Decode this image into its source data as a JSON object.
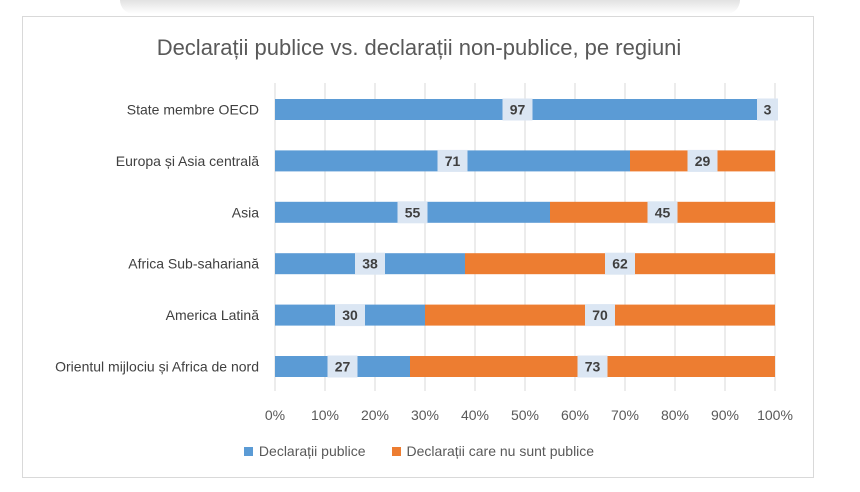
{
  "chart_data": {
    "type": "bar",
    "orientation": "horizontal",
    "stacked": true,
    "title": "Declarații publice vs. declarații non-publice, pe regiuni",
    "categories": [
      "State membre OECD",
      "Europa și Asia centrală",
      "Asia",
      "Africa Sub-sahariană",
      "America Latină",
      "Orientul mijlociu și Africa de nord"
    ],
    "series": [
      {
        "name": "Declarații publice",
        "color": "#5b9bd5",
        "values": [
          97,
          71,
          55,
          38,
          30,
          27
        ]
      },
      {
        "name": "Declarații care nu sunt publice",
        "color": "#ed7d31",
        "values": [
          3,
          29,
          45,
          62,
          70,
          73
        ]
      }
    ],
    "xlim": [
      0,
      100
    ],
    "x_ticks": [
      "0%",
      "10%",
      "20%",
      "30%",
      "40%",
      "50%",
      "60%",
      "70%",
      "80%",
      "90%",
      "100%"
    ],
    "grid": "vertical",
    "legend_position": "bottom"
  }
}
